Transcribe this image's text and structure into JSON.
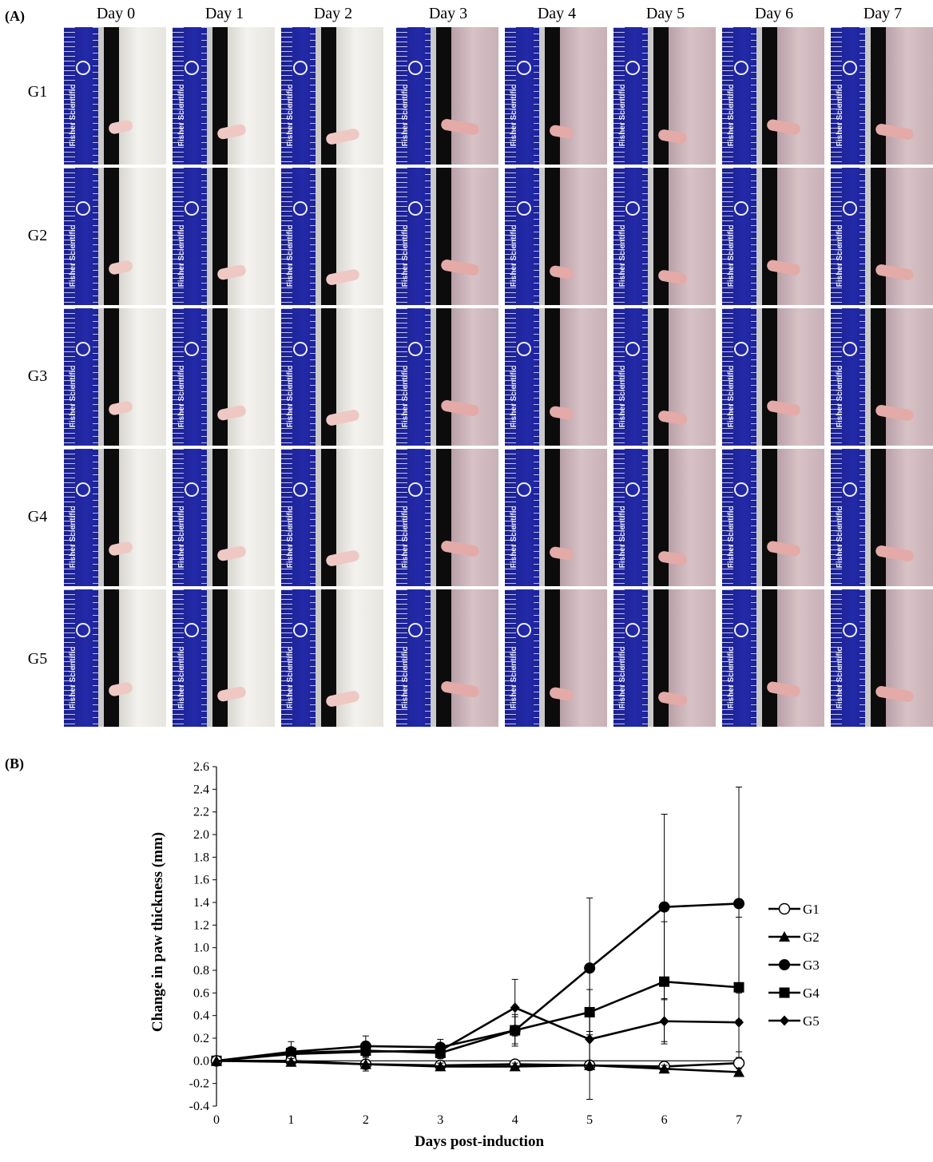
{
  "panel_a": {
    "label": "(A)",
    "days": [
      "Day 0",
      "Day 1",
      "Day 2",
      "Day 3",
      "Day 4",
      "Day 5",
      "Day 6",
      "Day 7"
    ],
    "groups": [
      "G1",
      "G2",
      "G3",
      "G4",
      "G5"
    ],
    "ruler_brand": "Fisher Scientific"
  },
  "panel_b": {
    "label": "(B)"
  },
  "chart_data": {
    "type": "line",
    "title": "",
    "xlabel": "Days post-induction",
    "ylabel": "Change in paw thickness (mm)",
    "xlim": [
      0,
      7
    ],
    "ylim": [
      -0.4,
      2.6
    ],
    "xticks": [
      "0",
      "1",
      "2",
      "3",
      "4",
      "5",
      "6",
      "7"
    ],
    "yticks": [
      "2.6",
      "2.4",
      "2.2",
      "2.0",
      "1.8",
      "1.6",
      "1.4",
      "1.2",
      "1.0",
      "0.8",
      "0.6",
      "0.4",
      "0.2",
      "0.0",
      "-0.2",
      "-0.4"
    ],
    "legend_position": "right",
    "x": [
      0,
      1,
      2,
      3,
      4,
      5,
      6,
      7
    ],
    "series": [
      {
        "name": "G1",
        "marker": "open-circle",
        "values": [
          0.0,
          0.0,
          -0.03,
          -0.04,
          -0.03,
          -0.04,
          -0.05,
          -0.02
        ],
        "errors": [
          0,
          0.03,
          0.04,
          0.04,
          0.03,
          0.04,
          0.03,
          0.1
        ]
      },
      {
        "name": "G2",
        "marker": "triangle",
        "values": [
          0.0,
          -0.01,
          -0.03,
          -0.05,
          -0.05,
          -0.04,
          -0.07,
          -0.1
        ],
        "errors": [
          0,
          0.03,
          0.06,
          0.03,
          0.03,
          0.3,
          0.03,
          0.03
        ]
      },
      {
        "name": "G3",
        "marker": "filled-circle",
        "values": [
          0.0,
          0.08,
          0.13,
          0.12,
          0.27,
          0.82,
          1.36,
          1.39
        ],
        "errors": [
          0,
          0.09,
          0.09,
          0.07,
          0.12,
          0.62,
          0.82,
          1.03
        ]
      },
      {
        "name": "G4",
        "marker": "square",
        "values": [
          0.0,
          0.07,
          0.09,
          0.07,
          0.27,
          0.43,
          0.7,
          0.65
        ],
        "errors": [
          0,
          0.05,
          0.05,
          0.05,
          0.14,
          0.2,
          0.53,
          0.62
        ]
      },
      {
        "name": "G5",
        "marker": "diamond",
        "values": [
          0.0,
          0.06,
          0.08,
          0.09,
          0.47,
          0.19,
          0.35,
          0.34
        ],
        "errors": [
          0,
          0.03,
          0.03,
          0.03,
          0.25,
          0.22,
          0.2,
          0.26
        ]
      }
    ]
  }
}
